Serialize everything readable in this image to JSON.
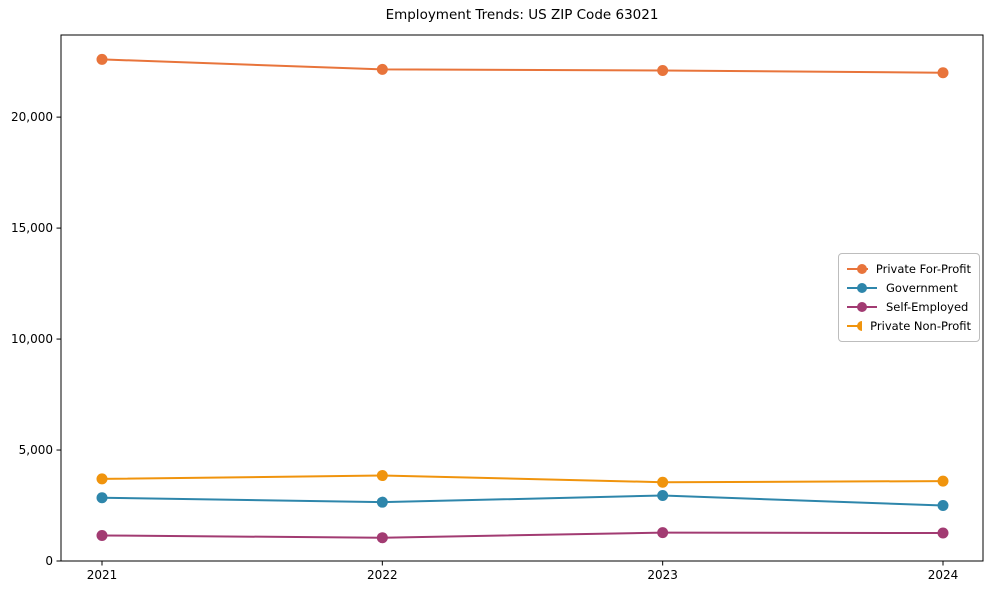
{
  "figure": {
    "background": "#ffffff",
    "axes_color": "#000000",
    "tick_label_color": "#000000"
  },
  "chart_data": {
    "type": "line",
    "title": "Employment Trends: US ZIP Code 63021",
    "xlabel": "",
    "ylabel": "",
    "grid": false,
    "legend_position": "center-right",
    "x": [
      2021,
      2022,
      2023,
      2024
    ],
    "x_tick_labels": [
      "2021",
      "2022",
      "2023",
      "2024"
    ],
    "y_ticks": [
      0,
      5000,
      10000,
      15000,
      20000
    ],
    "y_tick_labels": [
      "0",
      "5,000",
      "10,000",
      "15,000",
      "20,000"
    ],
    "ylim": [
      0,
      23700
    ],
    "series": [
      {
        "name": "Private For-Profit",
        "color": "#E8743B",
        "values": [
          22600,
          22150,
          22100,
          22000
        ]
      },
      {
        "name": "Government",
        "color": "#2E86AB",
        "values": [
          2850,
          2650,
          2950,
          2500
        ]
      },
      {
        "name": "Self-Employed",
        "color": "#A23B72",
        "values": [
          1150,
          1050,
          1280,
          1260
        ]
      },
      {
        "name": "Private Non-Profit",
        "color": "#F0940D",
        "values": [
          3700,
          3850,
          3550,
          3600
        ]
      }
    ]
  }
}
